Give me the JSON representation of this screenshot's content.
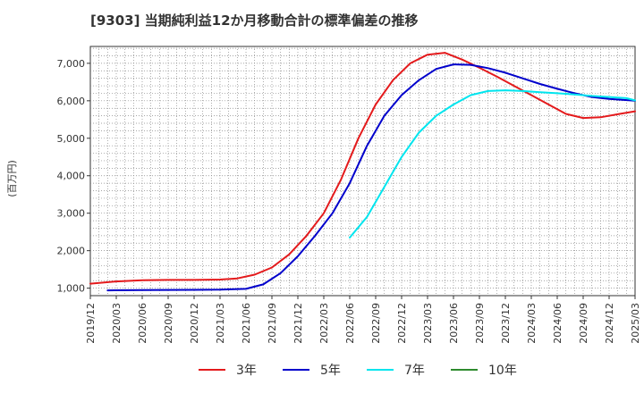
{
  "chart_data": {
    "type": "line",
    "title": "[9303]  当期純利益12か月移動合計の標準偏差の推移",
    "ylabel": "(百万円)",
    "xlabel": "",
    "ylim": [
      800,
      7450
    ],
    "yticks": [
      1000,
      2000,
      3000,
      4000,
      5000,
      6000,
      7000
    ],
    "ytick_labels": [
      "1,000",
      "2,000",
      "3,000",
      "4,000",
      "5,000",
      "6,000",
      "7,000"
    ],
    "xlim": [
      "2019-12",
      "2025-03"
    ],
    "xticks": [
      "2019/12",
      "2020/03",
      "2020/06",
      "2020/09",
      "2020/12",
      "2021/03",
      "2021/06",
      "2021/09",
      "2021/12",
      "2022/03",
      "2022/06",
      "2022/09",
      "2022/12",
      "2023/03",
      "2023/06",
      "2023/09",
      "2023/12",
      "2024/03",
      "2024/06",
      "2024/09",
      "2024/12",
      "2025/03"
    ],
    "grid": true,
    "legend_position": "bottom",
    "series": [
      {
        "name": "3年",
        "color": "#e41a1c",
        "points": [
          [
            "2019-12",
            1120
          ],
          [
            "2020-03",
            1180
          ],
          [
            "2020-06",
            1210
          ],
          [
            "2020-09",
            1220
          ],
          [
            "2020-12",
            1220
          ],
          [
            "2021-03",
            1230
          ],
          [
            "2021-05",
            1260
          ],
          [
            "2021-07",
            1360
          ],
          [
            "2021-09",
            1550
          ],
          [
            "2021-11",
            1900
          ],
          [
            "2022-01",
            2400
          ],
          [
            "2022-03",
            3000
          ],
          [
            "2022-05",
            3900
          ],
          [
            "2022-07",
            5000
          ],
          [
            "2022-09",
            5900
          ],
          [
            "2022-11",
            6550
          ],
          [
            "2023-01",
            7000
          ],
          [
            "2023-03",
            7230
          ],
          [
            "2023-05",
            7280
          ],
          [
            "2023-07",
            7100
          ],
          [
            "2023-09",
            6880
          ],
          [
            "2023-11",
            6650
          ],
          [
            "2024-01",
            6400
          ],
          [
            "2024-03",
            6150
          ],
          [
            "2024-05",
            5900
          ],
          [
            "2024-07",
            5650
          ],
          [
            "2024-09",
            5540
          ],
          [
            "2024-11",
            5560
          ],
          [
            "2025-01",
            5640
          ],
          [
            "2025-03",
            5720
          ]
        ]
      },
      {
        "name": "5年",
        "color": "#0000cc",
        "points": [
          [
            "2020-02",
            940
          ],
          [
            "2020-06",
            950
          ],
          [
            "2020-12",
            955
          ],
          [
            "2021-03",
            960
          ],
          [
            "2021-06",
            980
          ],
          [
            "2021-08",
            1100
          ],
          [
            "2021-10",
            1400
          ],
          [
            "2021-12",
            1850
          ],
          [
            "2022-02",
            2400
          ],
          [
            "2022-04",
            3000
          ],
          [
            "2022-06",
            3800
          ],
          [
            "2022-08",
            4800
          ],
          [
            "2022-10",
            5600
          ],
          [
            "2022-12",
            6150
          ],
          [
            "2023-02",
            6550
          ],
          [
            "2023-04",
            6850
          ],
          [
            "2023-06",
            6970
          ],
          [
            "2023-08",
            6960
          ],
          [
            "2023-10",
            6870
          ],
          [
            "2023-12",
            6750
          ],
          [
            "2024-02",
            6600
          ],
          [
            "2024-04",
            6450
          ],
          [
            "2024-06",
            6320
          ],
          [
            "2024-08",
            6200
          ],
          [
            "2024-10",
            6100
          ],
          [
            "2024-12",
            6050
          ],
          [
            "2025-03",
            6000
          ]
        ]
      },
      {
        "name": "7年",
        "color": "#00e5ee",
        "points": [
          [
            "2022-06",
            2350
          ],
          [
            "2022-08",
            2900
          ],
          [
            "2022-10",
            3700
          ],
          [
            "2022-12",
            4500
          ],
          [
            "2023-02",
            5150
          ],
          [
            "2023-04",
            5600
          ],
          [
            "2023-06",
            5900
          ],
          [
            "2023-08",
            6150
          ],
          [
            "2023-10",
            6260
          ],
          [
            "2023-12",
            6280
          ],
          [
            "2024-02",
            6260
          ],
          [
            "2024-04",
            6230
          ],
          [
            "2024-06",
            6200
          ],
          [
            "2024-08",
            6170
          ],
          [
            "2024-10",
            6130
          ],
          [
            "2024-12",
            6100
          ],
          [
            "2025-02",
            6070
          ],
          [
            "2025-03",
            6010
          ]
        ]
      },
      {
        "name": "10年",
        "color": "#2e8b2e",
        "points": []
      }
    ]
  }
}
